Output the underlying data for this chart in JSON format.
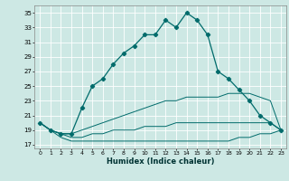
{
  "xlabel": "Humidex (Indice chaleur)",
  "bg_color": "#cde8e4",
  "line_color": "#006b6b",
  "grid_color": "#ffffff",
  "x_ticks": [
    0,
    1,
    2,
    3,
    4,
    5,
    6,
    7,
    8,
    9,
    10,
    11,
    12,
    13,
    14,
    15,
    16,
    17,
    18,
    19,
    20,
    21,
    22,
    23
  ],
  "y_ticks": [
    17,
    19,
    21,
    23,
    25,
    27,
    29,
    31,
    33,
    35
  ],
  "ylim": [
    16.5,
    36.0
  ],
  "xlim": [
    -0.5,
    23.5
  ],
  "series1_x": [
    0,
    1,
    2,
    3,
    4,
    5,
    6,
    7,
    8,
    9,
    10,
    11,
    12,
    13,
    14,
    15,
    16,
    17,
    18,
    19,
    20,
    21,
    22,
    23
  ],
  "series1_y": [
    20,
    19,
    18.5,
    18.5,
    22,
    25,
    26,
    28,
    29.5,
    30.5,
    32,
    32,
    34,
    33,
    35,
    34,
    32,
    27,
    26,
    24.5,
    23,
    21,
    20,
    19
  ],
  "series2_x": [
    0,
    1,
    2,
    3,
    4,
    5,
    6,
    7,
    8,
    9,
    10,
    11,
    12,
    13,
    14,
    15,
    16,
    17,
    18,
    19,
    20,
    21,
    22,
    23
  ],
  "series2_y": [
    20,
    19,
    18.5,
    18.5,
    19,
    19.5,
    20,
    20.5,
    21,
    21.5,
    22,
    22.5,
    23,
    23,
    23.5,
    23.5,
    23.5,
    23.5,
    24,
    24,
    24,
    23.5,
    23,
    19
  ],
  "series3_x": [
    0,
    1,
    2,
    3,
    4,
    5,
    6,
    7,
    8,
    9,
    10,
    11,
    12,
    13,
    14,
    15,
    16,
    17,
    18,
    19,
    20,
    21,
    22,
    23
  ],
  "series3_y": [
    20,
    19,
    18.5,
    18,
    18,
    18.5,
    18.5,
    19,
    19,
    19,
    19.5,
    19.5,
    19.5,
    20,
    20,
    20,
    20,
    20,
    20,
    20,
    20,
    20,
    20,
    19
  ],
  "series4_x": [
    0,
    1,
    2,
    3,
    4,
    5,
    6,
    7,
    8,
    9,
    10,
    11,
    12,
    13,
    14,
    15,
    16,
    17,
    18,
    19,
    20,
    21,
    22,
    23
  ],
  "series4_y": [
    20,
    19,
    18,
    17.5,
    17.5,
    17.5,
    17.5,
    17.5,
    17.5,
    17.5,
    17.5,
    17.5,
    17.5,
    17.5,
    17.5,
    17.5,
    17.5,
    17.5,
    17.5,
    18,
    18,
    18.5,
    18.5,
    19
  ]
}
